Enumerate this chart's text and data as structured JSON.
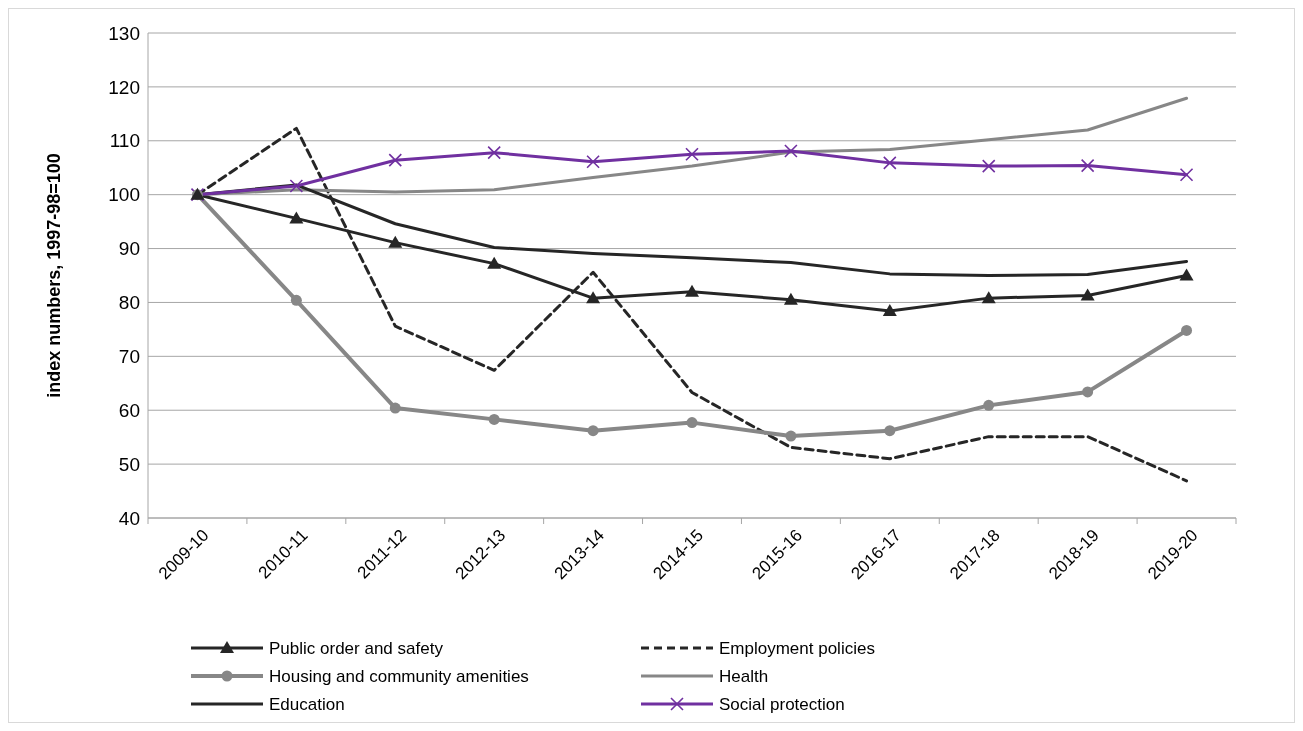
{
  "chart_data": {
    "type": "line",
    "ylabel": "index numbers, 1997-98=100",
    "categories": [
      "2009-10",
      "2010-11",
      "2011-12",
      "2012-13",
      "2013-14",
      "2014-15",
      "2015-16",
      "2016-17",
      "2017-18",
      "2018-19",
      "2019-20"
    ],
    "ylim": [
      40,
      130
    ],
    "yticks": [
      40,
      50,
      60,
      70,
      80,
      90,
      100,
      110,
      120,
      130
    ],
    "grid": "y",
    "legend": "bottom",
    "series": [
      {
        "name": "Public order and safety",
        "color": "#262626",
        "marker": "triangle",
        "line_style": "solid",
        "values": [
          100,
          95.6,
          91.1,
          87.2,
          80.8,
          82.0,
          80.5,
          78.4,
          80.8,
          81.3,
          85.0
        ]
      },
      {
        "name": "Employment policies",
        "color": "#262626",
        "marker": "none",
        "line_style": "dashed",
        "values": [
          100,
          112.3,
          75.6,
          67.4,
          85.6,
          63.3,
          53.1,
          51.0,
          55.1,
          55.1,
          46.9
        ]
      },
      {
        "name": "Housing and community amenities",
        "color": "#878787",
        "marker": "circle",
        "line_style": "solid",
        "values": [
          100,
          80.4,
          60.4,
          58.3,
          56.2,
          57.7,
          55.2,
          56.2,
          60.9,
          63.4,
          74.8
        ]
      },
      {
        "name": "Health",
        "color": "#878787",
        "marker": "none",
        "line_style": "solid",
        "values": [
          100,
          100.9,
          100.5,
          100.9,
          103.2,
          105.3,
          107.9,
          108.4,
          110.2,
          112.0,
          117.9
        ]
      },
      {
        "name": "Education",
        "color": "#262626",
        "marker": "none",
        "line_style": "solid",
        "values": [
          100,
          101.8,
          94.6,
          90.2,
          89.1,
          88.3,
          87.4,
          85.3,
          85.0,
          85.2,
          87.6
        ]
      },
      {
        "name": "Social protection",
        "color": "#7030a0",
        "marker": "cross",
        "line_style": "solid",
        "values": [
          100,
          101.6,
          106.4,
          107.8,
          106.1,
          107.5,
          108.1,
          105.9,
          105.3,
          105.4,
          103.7
        ]
      }
    ]
  }
}
